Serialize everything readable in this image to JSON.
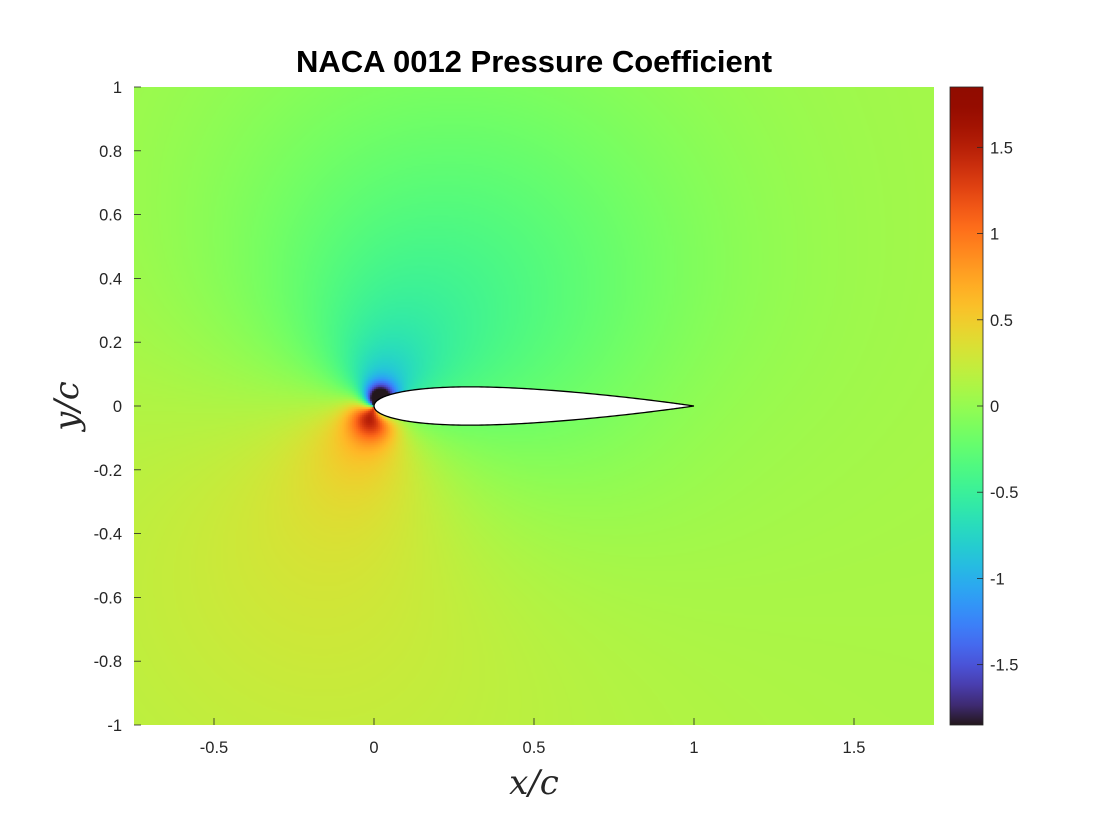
{
  "chart_data": {
    "type": "heatmap",
    "title": "NACA 0012 Pressure Coefficient",
    "xlabel": "x/c",
    "ylabel": "y/c",
    "xlim": [
      -0.75,
      1.75
    ],
    "ylim": [
      -1,
      1
    ],
    "x_ticks": [
      {
        "value": -0.5,
        "label": "-0.5"
      },
      {
        "value": 0,
        "label": "0"
      },
      {
        "value": 0.5,
        "label": "0.5"
      },
      {
        "value": 1,
        "label": "1"
      },
      {
        "value": 1.5,
        "label": "1.5"
      }
    ],
    "y_ticks": [
      {
        "value": 1,
        "label": "1"
      },
      {
        "value": 0.8,
        "label": "0.8"
      },
      {
        "value": 0.6,
        "label": "0.6"
      },
      {
        "value": 0.4,
        "label": "0.4"
      },
      {
        "value": 0.2,
        "label": "0.2"
      },
      {
        "value": 0,
        "label": "0"
      },
      {
        "value": -0.2,
        "label": "-0.2"
      },
      {
        "value": -0.4,
        "label": "-0.4"
      },
      {
        "value": -0.6,
        "label": "-0.6"
      },
      {
        "value": -0.8,
        "label": "-0.8"
      },
      {
        "value": -1,
        "label": "-1"
      }
    ],
    "colorbar": {
      "colormap": "turbo",
      "limits": [
        -1.85,
        1.85
      ],
      "ticks": [
        {
          "value": 1.5,
          "label": "1.5"
        },
        {
          "value": 1,
          "label": "1"
        },
        {
          "value": 0.5,
          "label": "0.5"
        },
        {
          "value": 0,
          "label": "0"
        },
        {
          "value": -0.5,
          "label": "-0.5"
        },
        {
          "value": -1,
          "label": "-1"
        },
        {
          "value": -1.5,
          "label": "-1.5"
        }
      ],
      "placement": "right"
    },
    "airfoil": {
      "shape": "NACA 0012",
      "leading_edge": [
        0,
        0
      ],
      "trailing_edge": [
        1,
        0
      ],
      "max_thickness": 0.12,
      "angle_of_attack_deg": 0
    },
    "field_features": [
      {
        "x": 0.02,
        "y": 0.015,
        "cp": -1.8,
        "note": "suction peak above leading edge"
      },
      {
        "x": 0.0,
        "y": -0.03,
        "cp": 0.9,
        "note": "stagnation region below leading edge"
      },
      {
        "x": 0.3,
        "y": 0.25,
        "cp": -0.5,
        "note": "low pressure lobe above airfoil"
      },
      {
        "x": 0.1,
        "y": -0.3,
        "cp": 0.25,
        "note": "high pressure lobe below airfoil"
      },
      {
        "x": 1.0,
        "y": 0.0,
        "cp": 0.2,
        "note": "trailing edge recovery"
      }
    ],
    "freestream_cp": 0.1,
    "grid": false
  }
}
